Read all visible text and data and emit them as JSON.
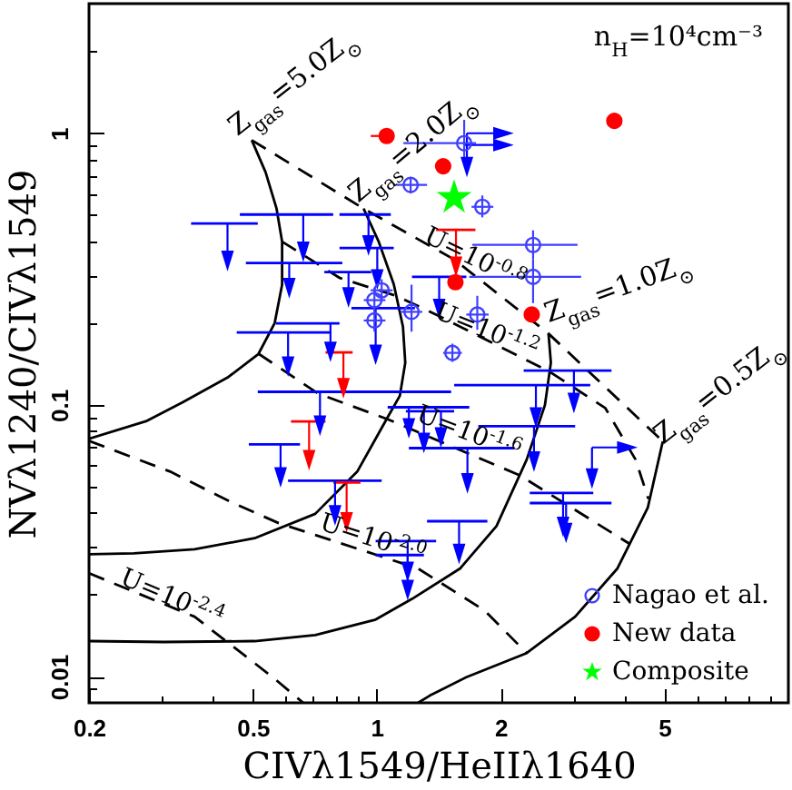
{
  "chart_data": {
    "type": "scatter",
    "xlabel": "CIVλ1549/HeIIλ1640",
    "ylabel": "NVλ1240/CIVλ1549",
    "log": "xy",
    "xlim": [
      0.2,
      10
    ],
    "ylim": [
      0.008,
      3
    ],
    "xticks": [
      0.2,
      {
        "value": 0.3,
        "label": null
      },
      {
        "value": 0.4,
        "label": null
      },
      0.5,
      {
        "value": 0.6,
        "label": null
      },
      {
        "value": 0.7,
        "label": null
      },
      {
        "value": 0.8,
        "label": null
      },
      {
        "value": 0.9,
        "label": null
      },
      1,
      2,
      {
        "value": 3,
        "label": null
      },
      {
        "value": 4,
        "label": null
      },
      5,
      {
        "value": 6,
        "label": null
      },
      {
        "value": 7,
        "label": null
      },
      {
        "value": 8,
        "label": null
      },
      {
        "value": 9,
        "label": null
      }
    ],
    "yticks": [
      {
        "value": 0.009,
        "label": null
      },
      0.01,
      {
        "value": 0.02,
        "label": null
      },
      {
        "value": 0.03,
        "label": null
      },
      {
        "value": 0.04,
        "label": null
      },
      {
        "value": 0.05,
        "label": null
      },
      {
        "value": 0.06,
        "label": null
      },
      {
        "value": 0.07,
        "label": null
      },
      {
        "value": 0.08,
        "label": null
      },
      {
        "value": 0.09,
        "label": null
      },
      0.1,
      {
        "value": 0.2,
        "label": null
      },
      {
        "value": 0.3,
        "label": null
      },
      {
        "value": 0.4,
        "label": null
      },
      {
        "value": 0.5,
        "label": null
      },
      {
        "value": 0.6,
        "label": null
      },
      {
        "value": 0.7,
        "label": null
      },
      {
        "value": 0.8,
        "label": null
      },
      {
        "value": 0.9,
        "label": null
      },
      1,
      {
        "value": 2,
        "label": null
      }
    ],
    "legend": "bottom right",
    "series": [
      {
        "type": "line",
        "color": "#000000",
        "line_style": "solid",
        "x": [
          0.497,
          0.537,
          0.571,
          0.589,
          0.589,
          0.565,
          0.516,
          0.434,
          0.337,
          0.275,
          0.2
        ],
        "values": [
          0.943,
          0.719,
          0.528,
          0.399,
          0.277,
          0.2,
          0.154,
          0.126,
          0.102,
          0.087,
          0.075
        ]
      },
      {
        "type": "line",
        "color": "#000000",
        "line_style": "solid",
        "x": [
          0.929,
          1.011,
          1.1,
          1.158,
          1.173,
          1.138,
          1.063,
          0.898,
          0.709,
          0.505,
          0.361,
          0.257,
          0.2
        ],
        "values": [
          0.528,
          0.399,
          0.278,
          0.194,
          0.143,
          0.108,
          0.09,
          0.057,
          0.0397,
          0.0323,
          0.0294,
          0.0284,
          0.0282
        ]
      },
      {
        "type": "line",
        "color": "#000000",
        "line_style": "solid",
        "x": [
          2.614,
          2.649,
          2.562,
          2.314,
          1.954,
          1.595,
          1.218,
          0.994,
          0.709,
          0.505,
          0.304,
          0.2
        ],
        "values": [
          0.183,
          0.143,
          0.0998,
          0.0629,
          0.0358,
          0.025,
          0.0193,
          0.0162,
          0.0142,
          0.0135,
          0.0134,
          0.0135
        ]
      },
      {
        "type": "line",
        "color": "#000000",
        "line_style": "solid",
        "x": [
          4.954,
          4.554,
          3.844,
          3.034,
          2.314,
          1.651,
          1.348,
          1.26
        ],
        "values": [
          0.0734,
          0.0418,
          0.025,
          0.0166,
          0.0122,
          0.00994,
          0.00852,
          0.008
        ]
      },
      {
        "type": "line",
        "color": "#000000",
        "line_style": "dashed",
        "x": [
          0.497,
          0.929,
          1.542,
          2.614,
          4.954
        ],
        "values": [
          0.943,
          0.528,
          0.343,
          0.183,
          0.0734
        ]
      },
      {
        "type": "line",
        "color": "#000000",
        "line_style": "dashed",
        "x": [
          0.589,
          0.814,
          1.115,
          1.394,
          2.64,
          3.592,
          4.254,
          4.57
        ],
        "values": [
          0.399,
          0.293,
          0.252,
          0.215,
          0.132,
          0.0973,
          0.0629,
          0.0451
        ]
      },
      {
        "type": "line",
        "color": "#000000",
        "line_style": "dashed",
        "x": [
          0.516,
          0.721,
          1.06,
          2.222,
          4.126
        ],
        "values": [
          0.1543,
          0.11,
          0.0887,
          0.0551,
          0.0307
        ]
      },
      {
        "type": "line",
        "color": "#000000",
        "line_style": "dashed",
        "x": [
          0.2,
          0.315,
          0.442,
          0.578,
          1.259,
          1.827,
          2.314
        ],
        "values": [
          0.0737,
          0.0568,
          0.0439,
          0.0367,
          0.025,
          0.0175,
          0.0122
        ]
      },
      {
        "type": "line",
        "color": "#000000",
        "line_style": "dashed",
        "x": [
          0.2,
          0.361,
          0.559,
          0.663
        ],
        "values": [
          0.024,
          0.0166,
          0.00994,
          0.008
        ]
      },
      {
        "type": "line",
        "color": "#0000ff",
        "x": [
          0.354,
          0.514
        ],
        "values": [
          0.465,
          0.465
        ]
      },
      {
        "type": "line",
        "color": "#0000ff",
        "x": [
          0.465,
          0.784
        ],
        "values": [
          0.502,
          0.502
        ]
      },
      {
        "type": "line",
        "color": "#0000ff",
        "x": [
          0.481,
          0.825
        ],
        "values": [
          0.333,
          0.333
        ]
      },
      {
        "type": "line",
        "color": "#0000ff",
        "x": [
          0.812,
          1.082
        ],
        "values": [
          0.502,
          0.502
        ]
      },
      {
        "type": "line",
        "color": "#0000ff",
        "x": [
          0.746,
          0.97
        ],
        "values": [
          0.308,
          0.308
        ]
      },
      {
        "type": "line",
        "color": "#0000ff",
        "x": [
          0.812,
          1.1
        ],
        "values": [
          0.378,
          0.378
        ]
      },
      {
        "type": "line",
        "color": "#0000ff",
        "x": [
          0.868,
          1.238
        ],
        "values": [
          0.227,
          0.227
        ]
      },
      {
        "type": "line",
        "color": "#0000ff",
        "x": [
          1.218,
          1.651
        ],
        "values": [
          0.296,
          0.296
        ]
      },
      {
        "type": "line",
        "color": "#0000ff",
        "x": [
          0.457,
          0.772
        ],
        "values": [
          0.1847,
          0.1847
        ]
      },
      {
        "type": "line",
        "color": "#0000ff",
        "x": [
          0.569,
          0.812
        ],
        "values": [
          0.1995,
          0.1995
        ]
      },
      {
        "type": "line",
        "color": "#0000ff",
        "x": [
          2.275,
          3.718
        ],
        "values": [
          0.1337,
          0.1337
        ]
      },
      {
        "type": "line",
        "color": "#0000ff",
        "x": [
          1.542,
          3.302
        ],
        "values": [
          0.1183,
          0.1183
        ]
      },
      {
        "type": "line",
        "color": "#0000ff",
        "x": [
          1.765,
          3.034
        ],
        "values": [
          0.0834,
          0.0834
        ]
      },
      {
        "type": "line",
        "color": "#0000ff",
        "x": [
          2.354,
          3.358
        ],
        "values": [
          0.0474,
          0.0474
        ]
      },
      {
        "type": "line",
        "color": "#0000ff",
        "x": [
          2.354,
          3.718
        ],
        "values": [
          0.0435,
          0.0435
        ]
      },
      {
        "type": "line",
        "color": "#0000ff",
        "x": [
          1.197,
          2.162
        ],
        "values": [
          0.0693,
          0.0693
        ]
      },
      {
        "type": "line",
        "color": "#0000ff",
        "x": [
          1.325,
          1.857
        ],
        "values": [
          0.0373,
          0.0373
        ]
      },
      {
        "type": "line",
        "color": "#0000ff",
        "x": [
          0.994,
          1.394
        ],
        "values": [
          0.0315,
          0.0315
        ]
      },
      {
        "type": "line",
        "color": "#0000ff",
        "x": [
          0.994,
          1.302
        ],
        "values": [
          0.028,
          0.028
        ]
      },
      {
        "type": "line",
        "color": "#0000ff",
        "x": [
          1.063,
          1.678
        ],
        "values": [
          0.098,
          0.098
        ]
      },
      {
        "type": "line",
        "color": "#0000ff",
        "x": [
          1.177,
          1.542
        ],
        "values": [
          0.0947,
          0.0947
        ]
      },
      {
        "type": "line",
        "color": "#0000ff",
        "x": [
          0.514,
          1.516
        ],
        "values": [
          0.1117,
          0.1117
        ]
      },
      {
        "type": "line",
        "color": "#0000ff",
        "x": [
          0.489,
          0.651
        ],
        "values": [
          0.0715,
          0.0715
        ]
      },
      {
        "type": "line",
        "color": "#0000ff",
        "x": [
          0.609,
          1.028
        ],
        "values": [
          0.0526,
          0.0526
        ]
      },
      {
        "type": "line",
        "color": "#ff0000",
        "x": [
          1.394,
          1.737
        ],
        "values": [
          0.441,
          0.441
        ]
      },
      {
        "type": "line",
        "color": "#ff0000",
        "x": [
          0.751,
          0.874
        ],
        "values": [
          0.156,
          0.156
        ]
      },
      {
        "type": "line",
        "color": "#ff0000",
        "x": [
          0.619,
          0.751
        ],
        "values": [
          0.0869,
          0.0869
        ]
      },
      {
        "type": "line",
        "color": "#ff0000",
        "x": [
          0.784,
          0.913
        ],
        "values": [
          0.0518,
          0.0518
        ]
      },
      {
        "color": "#0000ff",
        "marker": "triangle",
        "x": [
          1.656,
          0.434,
          0.663,
          0.613,
          0.955,
          0.854,
          1.003,
          0.994,
          1.418,
          0.609,
          0.772,
          3.013,
          2.436,
          2.41,
          2.836,
          2.884,
          1.661,
          1.585,
          1.189,
          1.189,
          1.197,
          1.302,
          1.432,
          0.728,
          0.584,
          0.792,
          3.334
        ],
        "values": [
          0.776,
          0.35,
          0.378,
          0.278,
          0.399,
          0.257,
          0.299,
          0.158,
          0.233,
          0.143,
          0.162,
          0.105,
          0.0929,
          0.0639,
          0.0367,
          0.0349,
          0.0531,
          0.0292,
          0.0251,
          0.0215,
          0.0847,
          0.0748,
          0.0784,
          0.0866,
          0.0559,
          0.0405,
          0.0553
        ],
        "errors": [
          [
            0.776,
            1.0
          ],
          [
            0.35,
            0.465
          ],
          [
            0.378,
            0.502
          ],
          [
            0.278,
            0.333
          ],
          [
            0.399,
            0.502
          ],
          [
            0.257,
            0.308
          ],
          [
            0.299,
            0.378
          ],
          [
            0.158,
            0.227
          ],
          [
            0.233,
            0.296
          ],
          [
            0.143,
            0.1847
          ],
          [
            0.162,
            0.1995
          ],
          [
            0.105,
            0.1337
          ],
          [
            0.0929,
            0.1183
          ],
          [
            0.0639,
            0.0834
          ],
          [
            0.0367,
            0.0474
          ],
          [
            0.0349,
            0.0435
          ],
          [
            0.0531,
            0.0693
          ],
          [
            0.0292,
            0.0373
          ],
          [
            0.0251,
            0.0315
          ],
          [
            0.0215,
            0.028
          ],
          [
            0.0847,
            0.098
          ],
          [
            0.0748,
            0.0947
          ],
          [
            0.0784,
            0.0947
          ],
          [
            0.0866,
            0.1117
          ],
          [
            0.0559,
            0.0715
          ],
          [
            0.0405,
            0.0526
          ],
          [
            0.0553,
            0.0697
          ]
        ]
      },
      {
        "color": "#ff0000",
        "marker": "triangle",
        "x": [
          1.558,
          0.83,
          0.685,
          0.845
        ],
        "values": [
          0.333,
          0.119,
          0.0647,
          0.0382
        ],
        "errors": [
          [
            0.333,
            0.441
          ],
          [
            0.119,
            0.156
          ],
          [
            0.0647,
            0.0869
          ],
          [
            0.0382,
            0.0518
          ]
        ]
      },
      {
        "color": "#0000ff",
        "marker": "triangle",
        "x": [
          1.988,
          1.988,
          3.975
        ],
        "values": [
          1.0,
          0.905,
          0.0697
        ],
        "xerrors": [
          [
            1.656,
            1.988
          ],
          [
            1.623,
            1.988
          ],
          [
            3.334,
            3.975
          ]
        ]
      },
      {
        "name": "Nagao et al.",
        "color": "#3f3fff",
        "marker": "circle",
        "x": [
          1.631,
          1.209,
          1.805,
          2.398,
          2.398,
          1.028,
          0.987,
          1.215,
          0.987,
          1.755,
          1.527
        ],
        "values": [
          0.919,
          0.645,
          0.536,
          0.388,
          0.296,
          0.264,
          0.243,
          0.22,
          0.2045,
          0.215,
          0.1554
        ],
        "errors": [
          [
            0.78,
            1.12
          ],
          [
            0.6,
            0.69
          ],
          [
            0.49,
            0.59
          ],
          [
            0.343,
            0.439
          ],
          [
            0.237,
            0.343
          ],
          [
            0.24,
            0.29
          ],
          [
            0.22,
            0.27
          ],
          [
            0.186,
            0.277
          ],
          [
            0.186,
            0.224
          ],
          [
            0.189,
            0.252
          ],
          [
            0.144,
            0.168
          ]
        ],
        "xerrors": [
          [
            1.161,
            1.742
          ],
          [
            1.115,
            1.325
          ],
          [
            1.7,
            1.92
          ],
          [
            1.707,
            3.075
          ],
          [
            1.678,
            3.138
          ],
          [
            0.967,
            1.093
          ],
          [
            0.93,
            1.05
          ],
          [
            1.14,
            1.29
          ],
          [
            0.93,
            1.05
          ],
          [
            1.65,
            1.87
          ],
          [
            1.45,
            1.61
          ]
        ]
      },
      {
        "name": "New data",
        "color": "#ff0000",
        "marker": "circle",
        "x": [
          1.057,
          3.778,
          1.45,
          1.553,
          2.38
        ],
        "values": [
          0.977,
          1.11,
          0.756,
          0.283,
          0.215
        ],
        "xerrors": [
          [
            0.967,
            1.07
          ],
          null,
          null,
          null,
          null
        ]
      },
      {
        "name": "Composite",
        "color": "#00ff00",
        "marker": "star",
        "x": [
          1.542
        ],
        "values": [
          0.579
        ]
      }
    ],
    "annotations": [
      "n$_{H}$=10⁴cm⁻³",
      {
        "text": "Z$_{gas}$=5.0Z$_{⊙}$",
        "x": 0.497,
        "y": 0.943
      },
      {
        "text": "Z$_{gas}$=2.0Z$_{⊙}$",
        "x": 0.929,
        "y": 0.528
      },
      {
        "text": "Z$_{gas}$=1.0Z$_{⊙}$",
        "x": 2.614,
        "y": 0.183
      },
      {
        "text": "Z$_{gas}$=0.5Z$_{⊙}$",
        "x": 4.954,
        "y": 0.0734
      },
      {
        "text": "U=10$^{-0.8}$",
        "x": 1.29,
        "y": 0.4
      },
      {
        "text": "U=10$^{-1.2}$",
        "x": 1.37,
        "y": 0.21
      },
      {
        "text": "U=10$^{-1.6}$",
        "x": 1.238,
        "y": 0.0877
      },
      {
        "text": "U=10$^{-2.0}$",
        "x": 0.721,
        "y": 0.0349
      },
      {
        "text": "U=10$^{-2.4}$",
        "x": 0.236,
        "y": 0.022
      }
    ]
  }
}
